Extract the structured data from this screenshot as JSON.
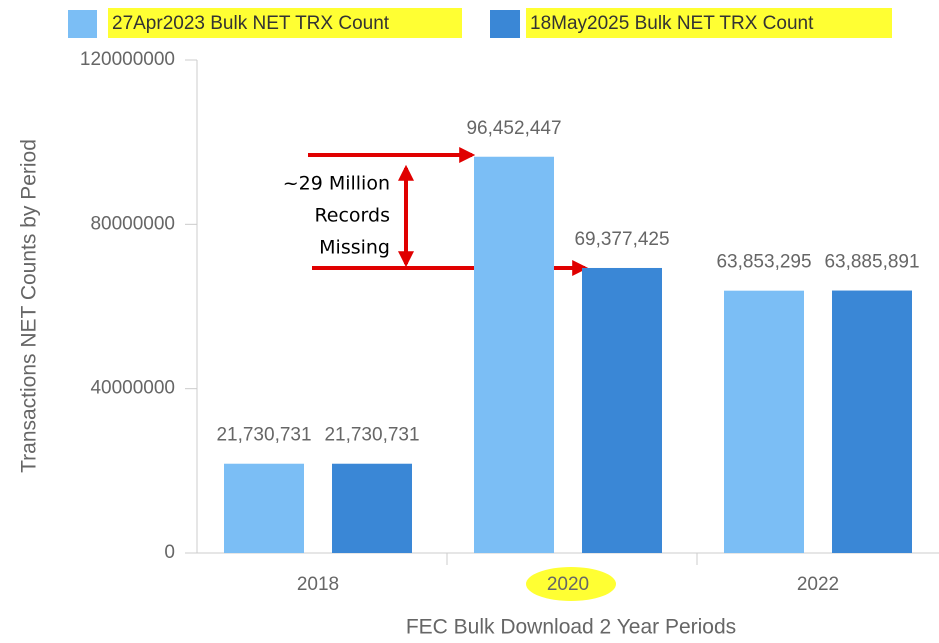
{
  "chart_data": {
    "type": "bar",
    "xlabel": "FEC Bulk Download 2 Year Periods",
    "ylabel": "Transactions NET Counts by Period",
    "categories": [
      "2018",
      "2020",
      "2022"
    ],
    "series": [
      {
        "name": "27Apr2023 Bulk NET TRX Count",
        "color": "#7bbef5",
        "values": [
          21730731,
          96452447,
          63853295
        ],
        "value_labels": [
          "21,730,731",
          "96,452,447",
          "63,853,295"
        ]
      },
      {
        "name": "18May2025 Bulk NET TRX Count",
        "color": "#3a87d6",
        "values": [
          21730731,
          69377425,
          63885891
        ],
        "value_labels": [
          "21,730,731",
          "69,377,425",
          "63,885,891"
        ]
      }
    ],
    "ylim": [
      0,
      120000000
    ],
    "yticks": [
      0,
      40000000,
      80000000,
      120000000
    ],
    "legend": "top",
    "annotation": [
      "~29 Million",
      "Records",
      "Missing"
    ]
  }
}
